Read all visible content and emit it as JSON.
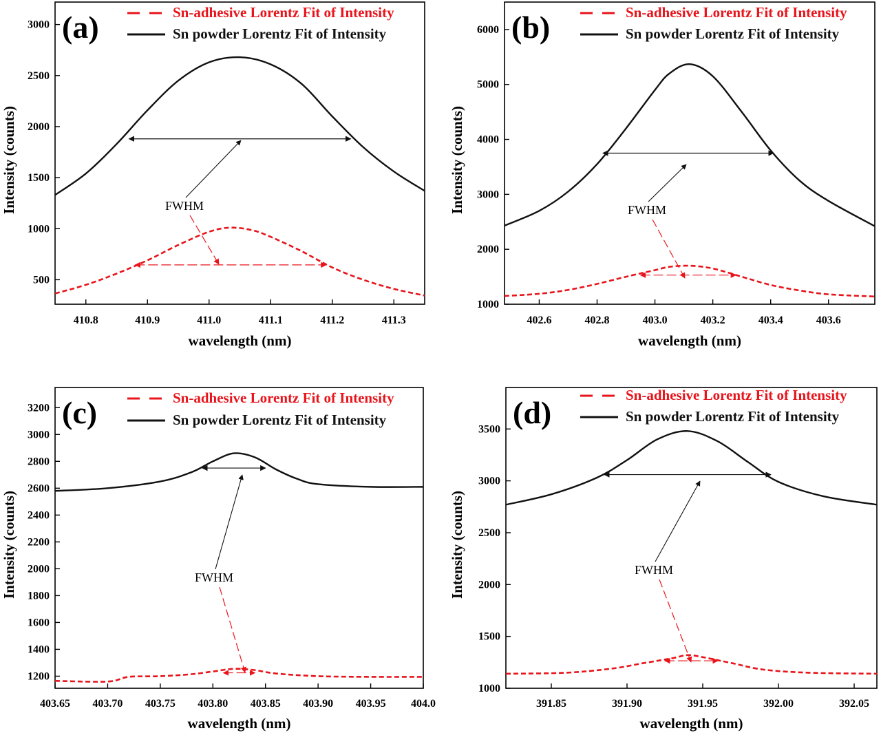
{
  "legend": {
    "adhesive": "Sn-adhesive Lorentz Fit of Intensity",
    "powder": "Sn powder Lorentz Fit of Intensity"
  },
  "colors": {
    "adhesive": "#e8141b",
    "powder": "#111111",
    "axis": "#000000"
  },
  "chart_data": [
    {
      "type": "line",
      "panel": "(a)",
      "title": "(a)",
      "xlabel": "wavelength (nm)",
      "ylabel": "Intensity (counts)",
      "xlim": [
        410.75,
        411.35
      ],
      "ylim": [
        260,
        3220
      ],
      "xticks": [
        410.8,
        410.9,
        411.0,
        411.1,
        411.2,
        411.3
      ],
      "xtick_labels": [
        "410.8",
        "410.9",
        "411.0",
        "411.1",
        "411.2",
        "411.3"
      ],
      "yticks": [
        500,
        1000,
        1500,
        2000,
        2500,
        3000
      ],
      "ytick_labels": [
        "500",
        "1000",
        "1500",
        "2000",
        "2500",
        "3000"
      ],
      "annotation": "FWHM",
      "series": [
        {
          "name": "Sn-adhesive Lorentz Fit of Intensity",
          "x": [
            410.75,
            410.8,
            410.85,
            410.9,
            410.95,
            411.0,
            411.035,
            411.07,
            411.1,
            411.15,
            411.2,
            411.25,
            411.3,
            411.35
          ],
          "y": [
            365,
            450,
            560,
            690,
            840,
            970,
            1010,
            985,
            920,
            780,
            620,
            500,
            410,
            345
          ],
          "fwhm": {
            "x1": 410.88,
            "x2": 411.19,
            "y": 645
          }
        },
        {
          "name": "Sn powder Lorentz Fit of Intensity",
          "x": [
            410.75,
            410.8,
            410.85,
            410.9,
            410.95,
            411.0,
            411.05,
            411.1,
            411.15,
            411.2,
            411.25,
            411.3,
            411.35
          ],
          "y": [
            1330,
            1540,
            1830,
            2160,
            2450,
            2630,
            2680,
            2610,
            2420,
            2100,
            1800,
            1560,
            1370
          ],
          "fwhm": {
            "x1": 410.87,
            "x2": 411.23,
            "y": 1880
          }
        }
      ]
    },
    {
      "type": "line",
      "panel": "(b)",
      "title": "(b)",
      "xlabel": "wavelength (nm)",
      "ylabel": "Intensity (counts)",
      "xlim": [
        402.48,
        403.76
      ],
      "ylim": [
        1000,
        6500
      ],
      "xticks": [
        402.6,
        402.8,
        403.0,
        403.2,
        403.4,
        403.6
      ],
      "xtick_labels": [
        "402.6",
        "402.8",
        "403.0",
        "403.2",
        "403.4",
        "403.6"
      ],
      "yticks": [
        1000,
        2000,
        3000,
        4000,
        5000,
        6000
      ],
      "ytick_labels": [
        "1000",
        "2000",
        "3000",
        "4000",
        "5000",
        "6000"
      ],
      "annotation": "FWHM",
      "series": [
        {
          "name": "Sn-adhesive Lorentz Fit of Intensity",
          "x": [
            402.48,
            402.6,
            402.7,
            402.8,
            402.9,
            403.0,
            403.05,
            403.12,
            403.2,
            403.3,
            403.4,
            403.5,
            403.6,
            403.76
          ],
          "y": [
            1150,
            1190,
            1260,
            1370,
            1500,
            1620,
            1680,
            1700,
            1650,
            1500,
            1350,
            1250,
            1180,
            1140
          ],
          "fwhm": {
            "x1": 402.95,
            "x2": 403.28,
            "y": 1530
          }
        },
        {
          "name": "Sn powder Lorentz Fit of Intensity",
          "x": [
            402.48,
            402.6,
            402.7,
            402.8,
            402.9,
            403.0,
            403.05,
            403.12,
            403.2,
            403.3,
            403.4,
            403.5,
            403.6,
            403.76
          ],
          "y": [
            2430,
            2700,
            3050,
            3550,
            4200,
            4900,
            5200,
            5370,
            5150,
            4500,
            3800,
            3250,
            2880,
            2420
          ],
          "fwhm": {
            "x1": 402.82,
            "x2": 403.41,
            "y": 3750
          }
        }
      ]
    },
    {
      "type": "line",
      "panel": "(c)",
      "title": "(c)",
      "xlabel": "wavelength (nm)",
      "ylabel": "Intensity (counts)",
      "xlim": [
        403.65,
        404.0
      ],
      "ylim": [
        1110,
        3350
      ],
      "xticks": [
        403.65,
        403.7,
        403.75,
        403.8,
        403.85,
        403.9,
        403.95,
        404.0
      ],
      "xtick_labels": [
        "403.65",
        "403.70",
        "403.75",
        "403.80",
        "403.85",
        "403.90",
        "403.95",
        "404.0"
      ],
      "yticks": [
        1200,
        1400,
        1600,
        1800,
        2000,
        2200,
        2400,
        2600,
        2800,
        3000,
        3200
      ],
      "ytick_labels": [
        "1200",
        "1400",
        "1600",
        "1800",
        "2000",
        "2200",
        "2400",
        "2600",
        "2800",
        "3000",
        "3200"
      ],
      "annotation": "FWHM",
      "series": [
        {
          "name": "Sn-adhesive Lorentz Fit of Intensity",
          "x": [
            403.65,
            403.7,
            403.72,
            403.75,
            403.78,
            403.8,
            403.82,
            403.84,
            403.86,
            403.9,
            403.95,
            404.0
          ],
          "y": [
            1165,
            1160,
            1195,
            1200,
            1215,
            1235,
            1255,
            1245,
            1220,
            1200,
            1195,
            1195
          ],
          "fwhm": {
            "x1": 403.81,
            "x2": 403.84,
            "y": 1225
          }
        },
        {
          "name": "Sn powder Lorentz Fit of Intensity",
          "x": [
            403.65,
            403.7,
            403.75,
            403.78,
            403.8,
            403.82,
            403.84,
            403.86,
            403.88,
            403.9,
            403.95,
            404.0
          ],
          "y": [
            2580,
            2600,
            2650,
            2720,
            2800,
            2860,
            2830,
            2740,
            2670,
            2630,
            2610,
            2610
          ],
          "fwhm": {
            "x1": 403.79,
            "x2": 403.85,
            "y": 2750
          }
        }
      ]
    },
    {
      "type": "line",
      "panel": "(d)",
      "title": "(d)",
      "xlabel": "wavelength (nm)",
      "ylabel": "Intensity (counts)",
      "xlim": [
        391.82,
        392.065
      ],
      "ylim": [
        1000,
        3900
      ],
      "xticks": [
        391.85,
        391.9,
        391.95,
        392.0,
        392.05
      ],
      "xtick_labels": [
        "391.85",
        "391.90",
        "391.95",
        "392.00",
        "392.05"
      ],
      "yticks": [
        1000,
        1500,
        2000,
        2500,
        3000,
        3500
      ],
      "ytick_labels": [
        "1000",
        "1500",
        "2000",
        "2500",
        "3000",
        "3500"
      ],
      "annotation": "FWHM",
      "series": [
        {
          "name": "Sn-adhesive Lorentz Fit of Intensity",
          "x": [
            391.82,
            391.86,
            391.89,
            391.91,
            391.93,
            391.94,
            391.95,
            391.97,
            391.99,
            392.02,
            392.065
          ],
          "y": [
            1140,
            1150,
            1190,
            1240,
            1290,
            1320,
            1300,
            1240,
            1180,
            1150,
            1140
          ],
          "fwhm": {
            "x1": 391.925,
            "x2": 391.96,
            "y": 1265
          }
        },
        {
          "name": "Sn powder Lorentz Fit of Intensity",
          "x": [
            391.82,
            391.85,
            391.88,
            391.9,
            391.92,
            391.94,
            391.96,
            391.98,
            392.0,
            392.03,
            392.065
          ],
          "y": [
            2770,
            2870,
            3030,
            3200,
            3400,
            3480,
            3380,
            3180,
            2990,
            2850,
            2770
          ],
          "fwhm": {
            "x1": 391.885,
            "x2": 391.995,
            "y": 3060
          }
        }
      ]
    }
  ]
}
